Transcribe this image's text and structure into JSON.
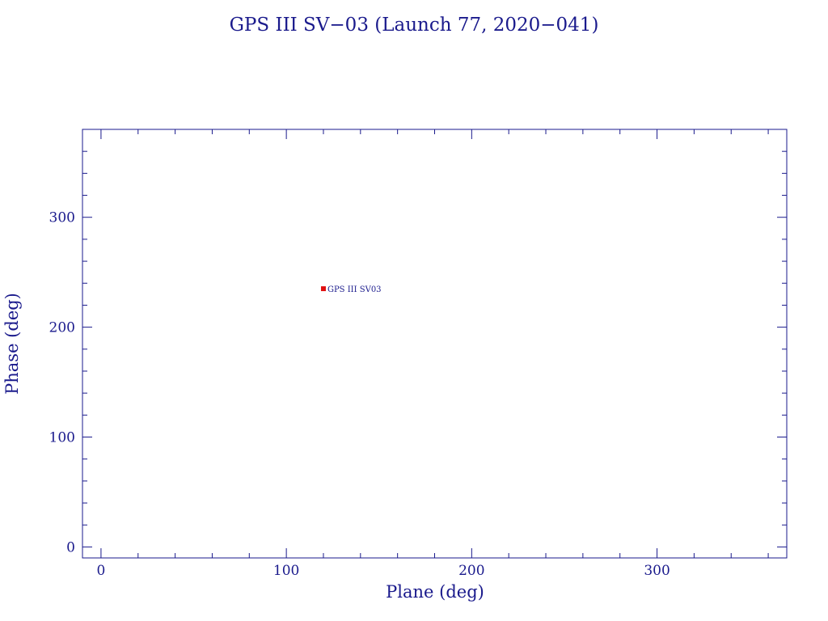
{
  "chart_data": {
    "type": "scatter",
    "title": "GPS III SV−03 (Launch 77, 2020−041)",
    "xlabel": "Plane (deg)",
    "ylabel": "Phase (deg)",
    "xlim": [
      -10,
      370
    ],
    "ylim": [
      -10,
      380
    ],
    "xticks": [
      0,
      100,
      200,
      300
    ],
    "xtick_labels": [
      "0",
      "100",
      "200",
      "300"
    ],
    "yticks": [
      0,
      100,
      200,
      300
    ],
    "ytick_labels": [
      "0",
      "100",
      "200",
      "300"
    ],
    "x_minor_step": 20,
    "y_minor_step": 20,
    "grid": false,
    "points": [
      {
        "x": 120,
        "y": 235,
        "label": "GPS III SV03"
      }
    ],
    "colors": {
      "axes": "#1a1a8c",
      "text": "#1a1a8c",
      "marker": "#e01010"
    }
  }
}
